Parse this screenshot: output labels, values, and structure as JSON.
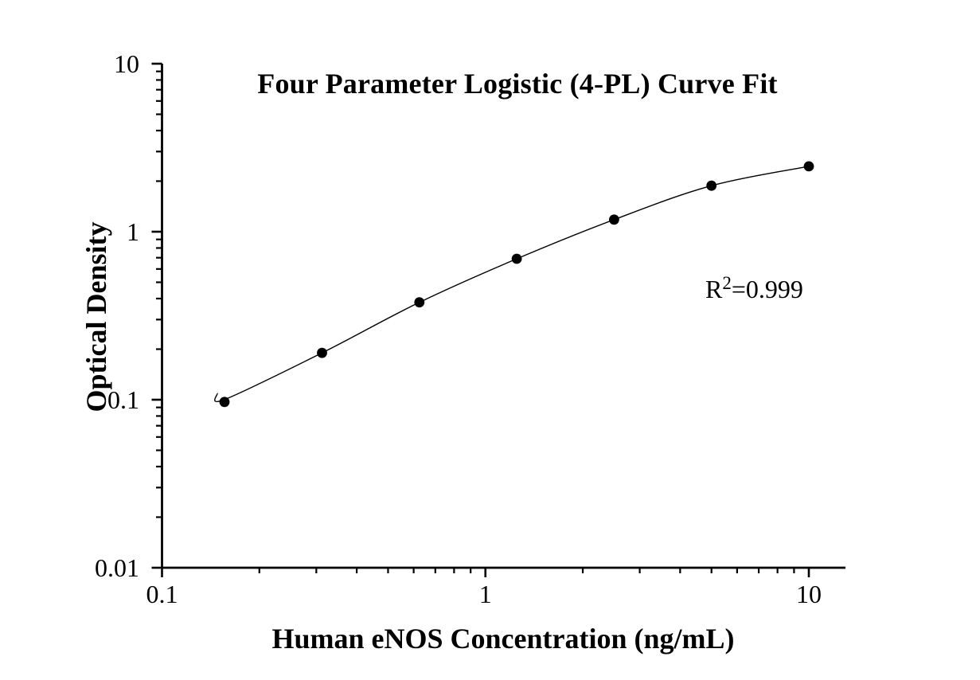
{
  "colors": {
    "ink": "#000000",
    "background": "#ffffff",
    "marker": "#000000"
  },
  "annotation": {
    "r_label": "R",
    "r_exponent": "2",
    "r_value": "=0.999"
  },
  "chart_data": {
    "type": "scatter",
    "subtype": "scatter-with-fit-line",
    "title": "Four Parameter Logistic (4-PL) Curve Fit",
    "xlabel": "Human eNOS Concentration (ng/mL)",
    "ylabel": "Optical Density",
    "x_scale": "log",
    "y_scale": "log",
    "xlim": [
      0.1,
      13
    ],
    "ylim": [
      0.01,
      10
    ],
    "x_major_ticks": [
      0.1,
      1,
      10
    ],
    "x_tick_labels": [
      "0.1",
      "1",
      "10"
    ],
    "y_major_ticks": [
      10,
      1,
      0.1,
      0.01
    ],
    "y_tick_labels": [
      "10",
      "1",
      "0.1",
      "0.01"
    ],
    "grid": false,
    "legend": false,
    "r_squared": 0.999,
    "series": [
      {
        "name": "standard-curve",
        "marker": "filled-circle",
        "line": "4pl-fit",
        "x": [
          0.156,
          0.3125,
          0.625,
          1.25,
          2.5,
          5,
          10
        ],
        "y": [
          0.097,
          0.19,
          0.38,
          0.69,
          1.18,
          1.88,
          2.45
        ]
      }
    ]
  }
}
